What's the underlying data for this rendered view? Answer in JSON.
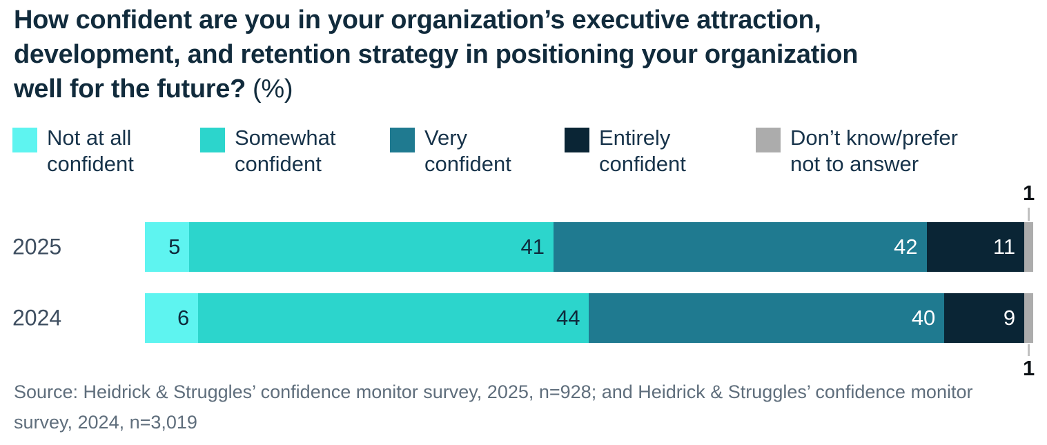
{
  "title": {
    "main": "How confident are you in your organization’s executive attraction,\ndevelopment, and retention strategy in positioning your organization\nwell for the future?",
    "suffix": "(%)"
  },
  "legend": [
    {
      "label": "Not at all\nconfident",
      "color": "#5ef4f0"
    },
    {
      "label": "Somewhat\nconfident",
      "color": "#2cd5cc"
    },
    {
      "label": "Very\nconfident",
      "color": "#1f7a90"
    },
    {
      "label": "Entirely\nconfident",
      "color": "#0a2535"
    },
    {
      "label": "Don’t know/prefer\nnot to answer",
      "color": "#acacac"
    }
  ],
  "chart_data": {
    "type": "bar",
    "orientation": "horizontal",
    "stacked": true,
    "unit": "%",
    "title": "How confident are you in your organization’s executive attraction, development, and retention strategy in positioning your organization well for the future? (%)",
    "categories": [
      "2025",
      "2024"
    ],
    "series": [
      {
        "name": "Not at all confident",
        "color": "#5ef4f0",
        "values": [
          5,
          6
        ]
      },
      {
        "name": "Somewhat confident",
        "color": "#2cd5cc",
        "values": [
          41,
          44
        ]
      },
      {
        "name": "Very confident",
        "color": "#1f7a90",
        "values": [
          42,
          40
        ]
      },
      {
        "name": "Entirely confident",
        "color": "#0a2535",
        "values": [
          11,
          9
        ]
      },
      {
        "name": "Don’t know/prefer not to answer",
        "color": "#acacac",
        "values": [
          1,
          1
        ]
      }
    ],
    "xlim": [
      0,
      100
    ],
    "value_labels": true,
    "legend_position": "top"
  },
  "source": "Source: Heidrick & Struggles’ confidence monitor survey, 2025, n=928; and Heidrick & Struggles’ confidence monitor survey, 2024, n=3,019"
}
